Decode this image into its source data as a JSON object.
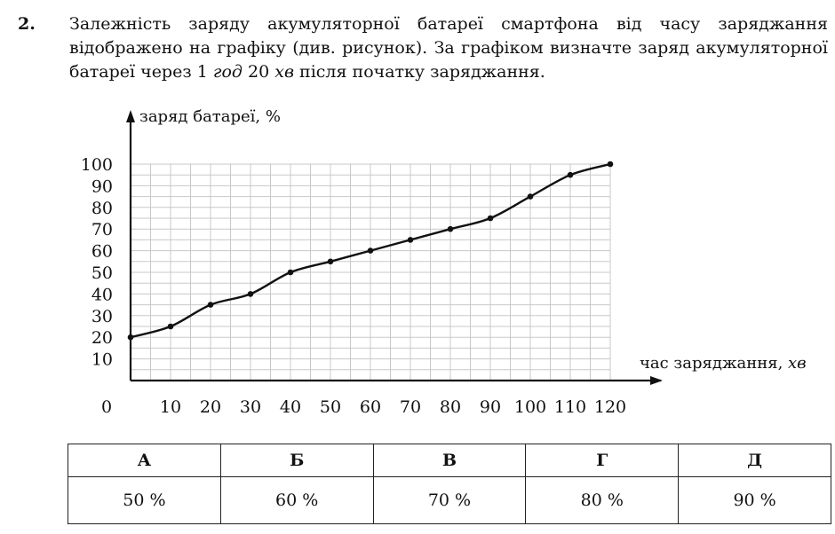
{
  "question": {
    "number": "2.",
    "text_before": "Залежність заряду акумуляторної батареї смартфона від часу заряджання відображено на графіку (див. рисунок). За графіком визначте заряд акумуляторної батареї через 1 ",
    "italic_hours": "год",
    "text_middle": " 20 ",
    "italic_minutes": "хв",
    "text_after": " після початку заряджання."
  },
  "chart_data": {
    "type": "line",
    "ylabel": "заряд батареї, %",
    "xlabel_text": "час заряджання, ",
    "xlabel_unit": "хв",
    "origin_label": "0",
    "xlim": [
      0,
      120
    ],
    "ylim": [
      0,
      100
    ],
    "x_ticks": [
      10,
      20,
      30,
      40,
      50,
      60,
      70,
      80,
      90,
      100,
      110,
      120
    ],
    "y_ticks": [
      10,
      20,
      30,
      40,
      50,
      60,
      70,
      80,
      90,
      100
    ],
    "grid": true,
    "x": [
      0,
      10,
      20,
      30,
      40,
      50,
      60,
      70,
      80,
      90,
      100,
      110,
      120
    ],
    "y": [
      20,
      25,
      35,
      40,
      50,
      55,
      60,
      65,
      70,
      75,
      85,
      95,
      100
    ]
  },
  "answers": {
    "headers": [
      "А",
      "Б",
      "В",
      "Г",
      "Д"
    ],
    "values": [
      "50 %",
      "60 %",
      "70 %",
      "80 %",
      "90 %"
    ]
  }
}
